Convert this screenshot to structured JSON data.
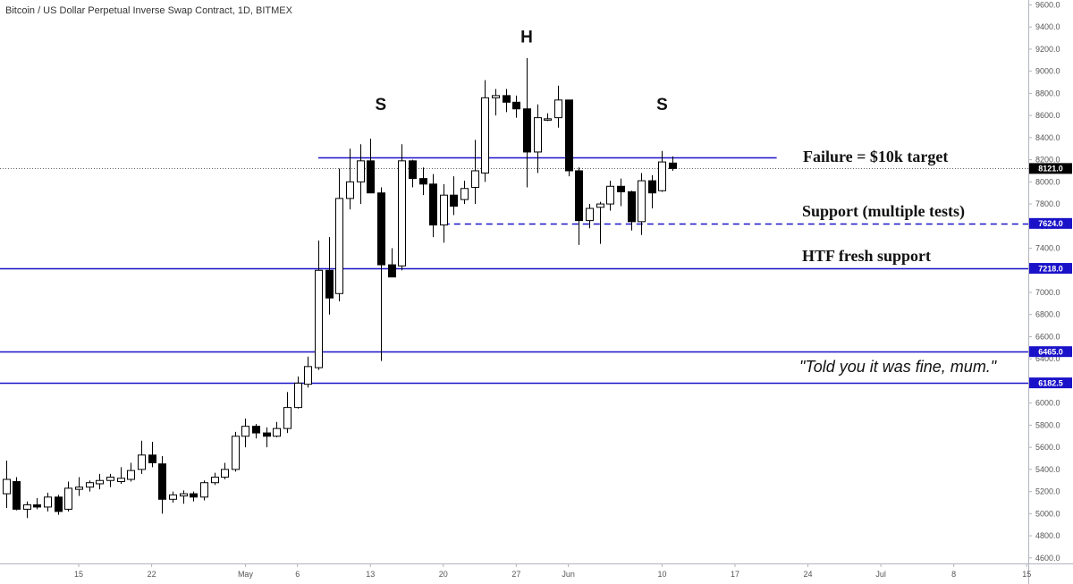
{
  "chart_data": {
    "type": "candlestick",
    "title": "Bitcoin / US Dollar Perpetual Inverse Swap Contract, 1D, BITMEX",
    "ylim": [
      4550,
      9620
    ],
    "y_ticks": [
      4600,
      4800,
      5000,
      5200,
      5400,
      5600,
      5800,
      6000,
      6200,
      6400,
      6600,
      6800,
      7000,
      7200,
      7400,
      7600,
      7800,
      8000,
      8200,
      8400,
      8600,
      8800,
      9000,
      9200,
      9400,
      9600
    ],
    "x_start_date": "2019-04-08",
    "x_ticks": [
      {
        "day": 7,
        "label": "15"
      },
      {
        "day": 14,
        "label": "22"
      },
      {
        "day": 23,
        "label": "May"
      },
      {
        "day": 28,
        "label": "6"
      },
      {
        "day": 35,
        "label": "13"
      },
      {
        "day": 42,
        "label": "20"
      },
      {
        "day": 49,
        "label": "27"
      },
      {
        "day": 54,
        "label": "Jun"
      },
      {
        "day": 63,
        "label": "10"
      },
      {
        "day": 70,
        "label": "17"
      },
      {
        "day": 77,
        "label": "24"
      },
      {
        "day": 84,
        "label": "Jul"
      },
      {
        "day": 91,
        "label": "8"
      },
      {
        "day": 98,
        "label": "15"
      }
    ],
    "last_price": {
      "value": 8121.0,
      "label": "8121.0"
    },
    "candles": [
      [
        5180,
        5480,
        5050,
        5310
      ],
      [
        5290,
        5330,
        5030,
        5040
      ],
      [
        5040,
        5110,
        4960,
        5080
      ],
      [
        5080,
        5140,
        5040,
        5060
      ],
      [
        5060,
        5190,
        5020,
        5150
      ],
      [
        5150,
        5170,
        4990,
        5020
      ],
      [
        5040,
        5290,
        5020,
        5230
      ],
      [
        5220,
        5330,
        5160,
        5240
      ],
      [
        5240,
        5300,
        5200,
        5280
      ],
      [
        5270,
        5360,
        5220,
        5300
      ],
      [
        5300,
        5360,
        5240,
        5330
      ],
      [
        5290,
        5420,
        5270,
        5320
      ],
      [
        5310,
        5460,
        5290,
        5390
      ],
      [
        5400,
        5660,
        5360,
        5530
      ],
      [
        5530,
        5650,
        5420,
        5460
      ],
      [
        5450,
        5520,
        5000,
        5130
      ],
      [
        5130,
        5200,
        5100,
        5170
      ],
      [
        5160,
        5210,
        5090,
        5180
      ],
      [
        5180,
        5200,
        5110,
        5150
      ],
      [
        5150,
        5300,
        5120,
        5280
      ],
      [
        5280,
        5370,
        5260,
        5330
      ],
      [
        5330,
        5460,
        5310,
        5400
      ],
      [
        5400,
        5740,
        5380,
        5700
      ],
      [
        5700,
        5860,
        5600,
        5790
      ],
      [
        5790,
        5810,
        5680,
        5730
      ],
      [
        5730,
        5780,
        5600,
        5700
      ],
      [
        5700,
        5830,
        5690,
        5770
      ],
      [
        5770,
        6100,
        5730,
        5960
      ],
      [
        5960,
        6240,
        5950,
        6180
      ],
      [
        6170,
        6420,
        6140,
        6330
      ],
      [
        6320,
        7470,
        6300,
        7200
      ],
      [
        7200,
        7500,
        6800,
        6950
      ],
      [
        6990,
        8120,
        6920,
        7850
      ],
      [
        7850,
        8300,
        7750,
        8000
      ],
      [
        8000,
        8340,
        7800,
        8190
      ],
      [
        8190,
        8390,
        7900,
        7900
      ],
      [
        7900,
        7950,
        6380,
        7250
      ],
      [
        7250,
        7400,
        7170,
        7140
      ],
      [
        7240,
        8340,
        7200,
        8190
      ],
      [
        8190,
        8200,
        7950,
        8030
      ],
      [
        8030,
        8130,
        7880,
        7980
      ],
      [
        7980,
        8070,
        7500,
        7610
      ],
      [
        7610,
        7980,
        7450,
        7880
      ],
      [
        7880,
        8050,
        7700,
        7780
      ],
      [
        7840,
        8010,
        7800,
        7940
      ],
      [
        7950,
        8380,
        7800,
        8100
      ],
      [
        8080,
        8920,
        8000,
        8760
      ],
      [
        8760,
        8840,
        8600,
        8780
      ],
      [
        8780,
        8840,
        8630,
        8720
      ],
      [
        8720,
        8780,
        8580,
        8660
      ],
      [
        8660,
        9120,
        7950,
        8270
      ],
      [
        8270,
        8700,
        8080,
        8580
      ],
      [
        8560,
        8620,
        8550,
        8570
      ],
      [
        8580,
        8870,
        8490,
        8740
      ],
      [
        8740,
        8740,
        8050,
        8100
      ],
      [
        8100,
        8130,
        7430,
        7650
      ],
      [
        7650,
        7800,
        7580,
        7760
      ],
      [
        7770,
        7820,
        7440,
        7800
      ],
      [
        7800,
        8010,
        7740,
        7960
      ],
      [
        7960,
        8030,
        7780,
        7910
      ],
      [
        7910,
        7920,
        7560,
        7640
      ],
      [
        7640,
        8080,
        7520,
        8010
      ],
      [
        8010,
        8060,
        7760,
        7900
      ],
      [
        7920,
        8280,
        7910,
        8180
      ],
      [
        8170,
        8230,
        8100,
        8121
      ]
    ],
    "levels": [
      {
        "value": 8220,
        "label": "",
        "style": "solid",
        "x_from": 30,
        "x_to": 74
      },
      {
        "value": 7624.0,
        "label": "7624.0",
        "style": "dashed",
        "x_from": 42,
        "x_to": 999
      },
      {
        "value": 7218.0,
        "label": "7218.0",
        "style": "solid",
        "x_from": 0,
        "x_to": 999
      },
      {
        "value": 6465.0,
        "label": "6465.0",
        "style": "solid",
        "x_from": 0,
        "x_to": 999
      },
      {
        "value": 6182.5,
        "label": "6182.5",
        "style": "solid",
        "x_from": 0,
        "x_to": 999
      }
    ],
    "pattern_labels": [
      {
        "text": "S",
        "day": 36,
        "value": 8650
      },
      {
        "text": "H",
        "day": 50,
        "value": 9260
      },
      {
        "text": "S",
        "day": 63,
        "value": 8650
      }
    ],
    "annotations": {
      "failure": "Failure = $10k target",
      "support": "Support (multiple tests)",
      "htf": "HTF fresh support",
      "quote": "\"Told you it was fine, mum.\""
    }
  },
  "colors": {
    "up_candle_fill": "#ffffff",
    "down_candle_fill": "#000000",
    "candle_border": "#000000",
    "level_line": "#1a12c8",
    "axis_label_bg": "#1a12c8",
    "last_price_bg": "#000000"
  }
}
